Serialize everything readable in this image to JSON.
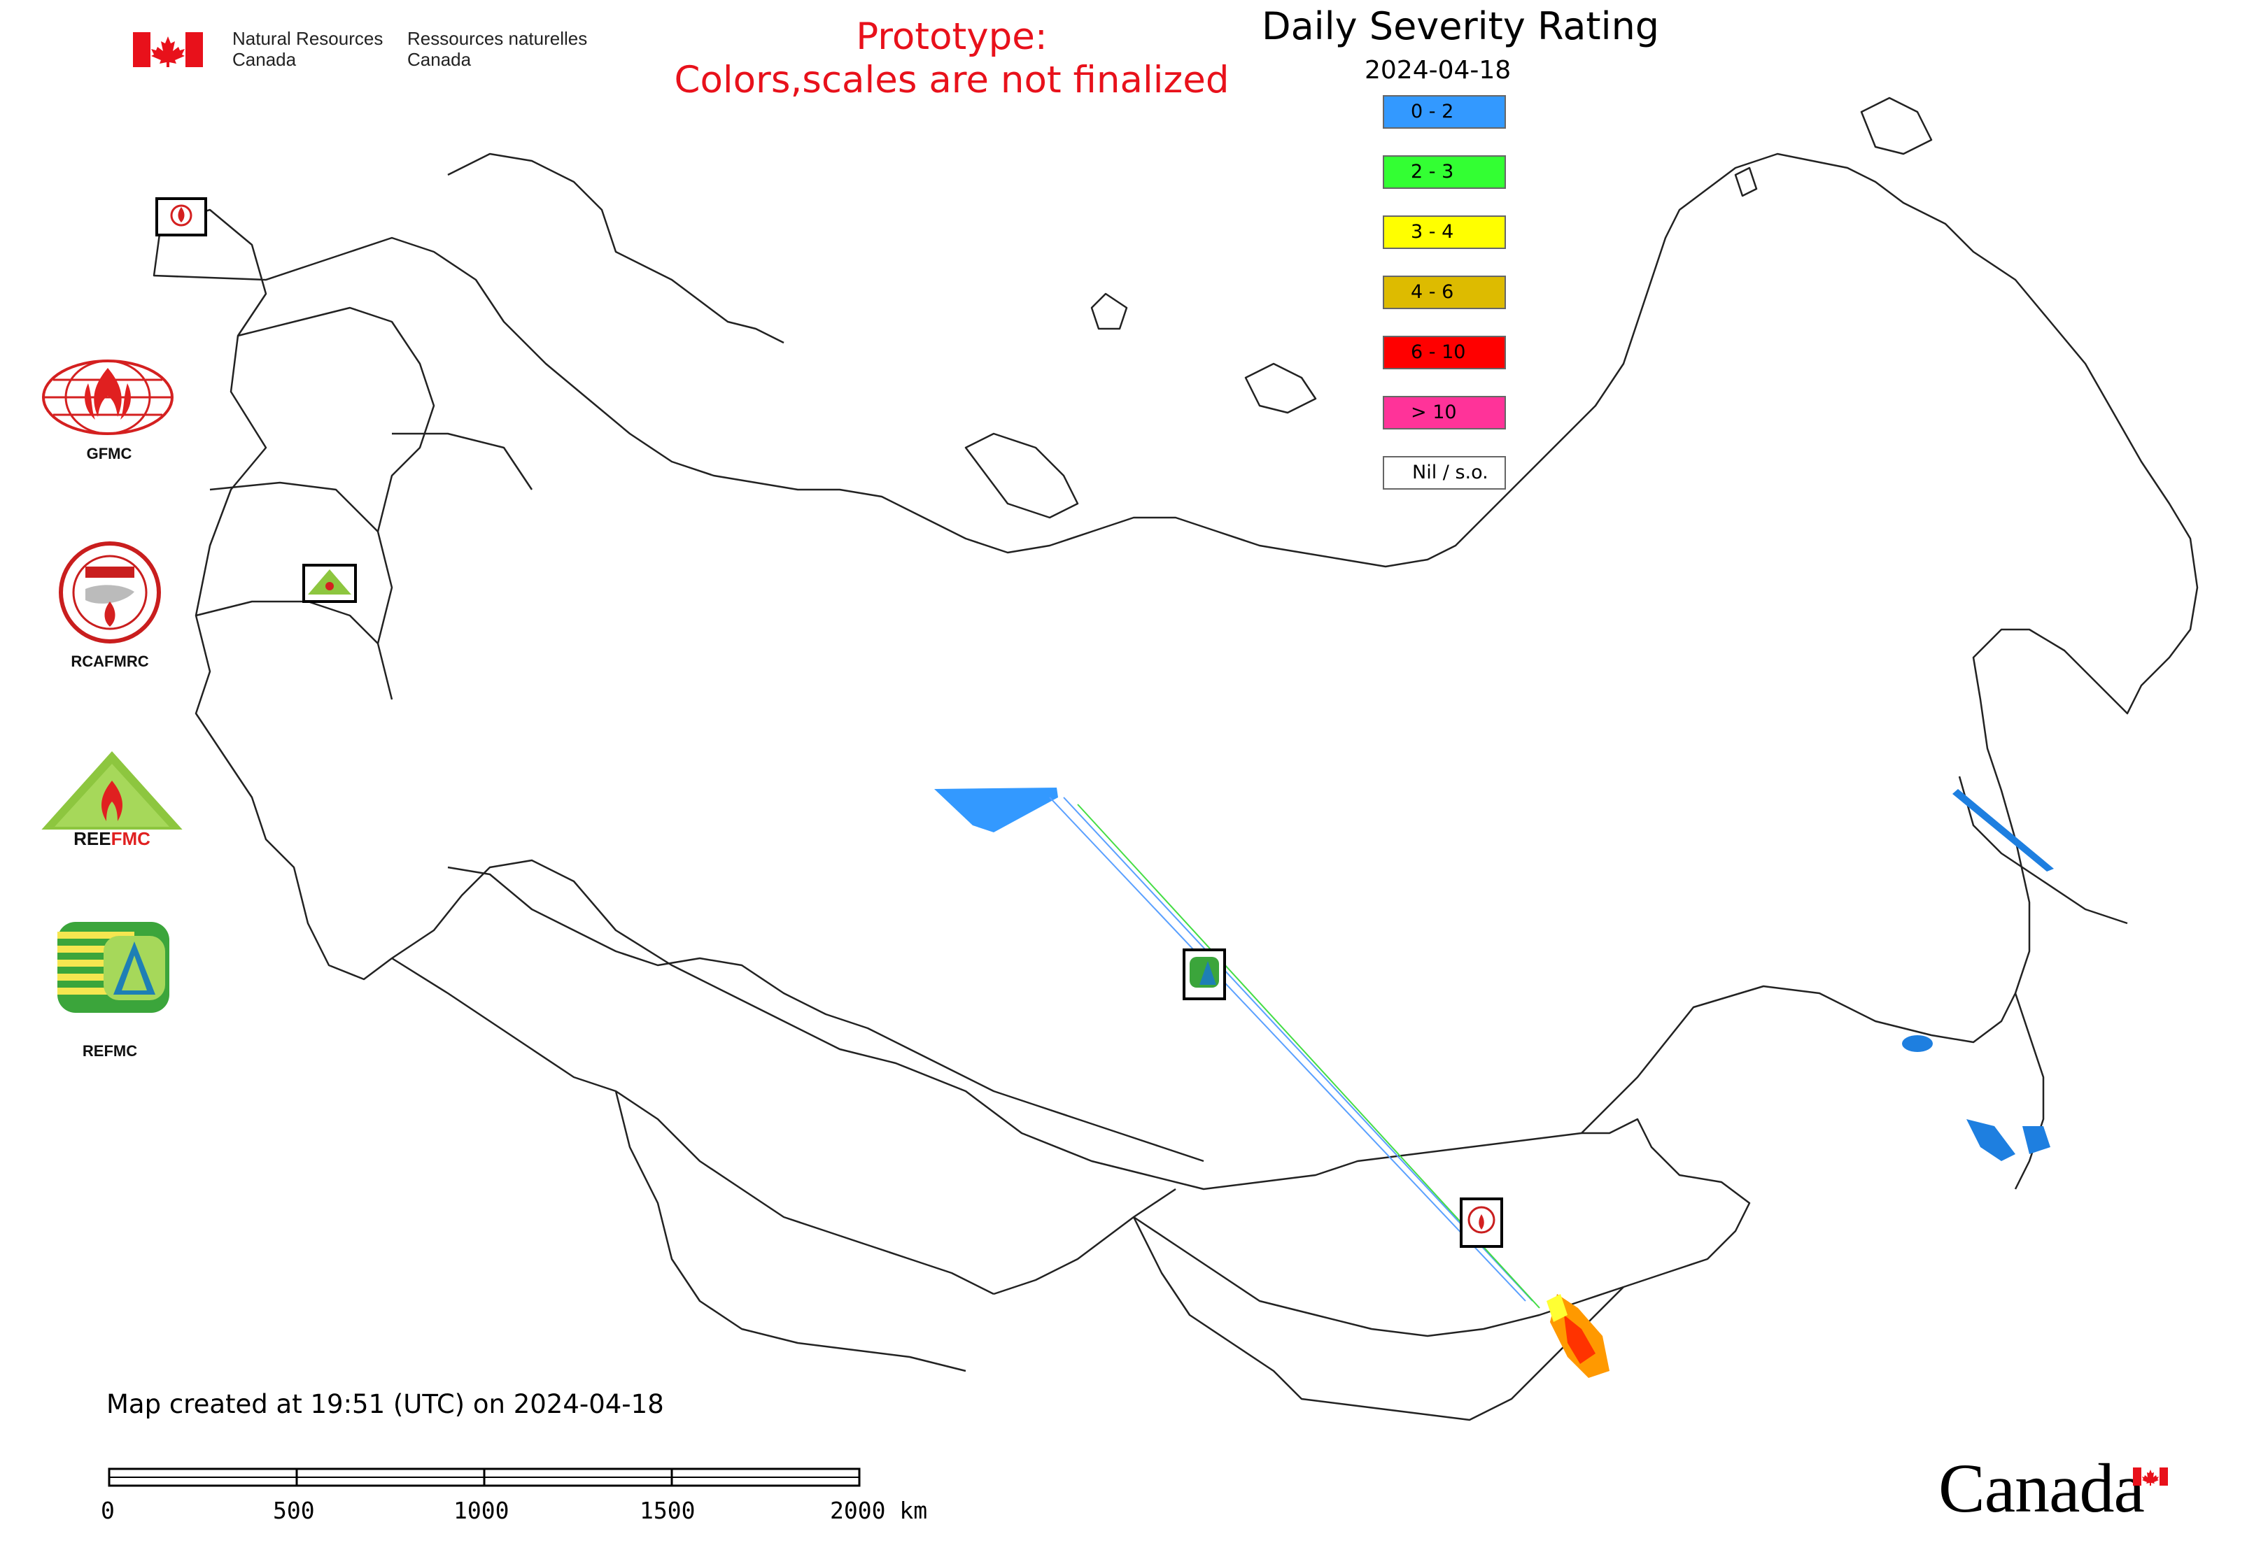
{
  "header": {
    "agency_en_line1": "Natural Resources",
    "agency_en_line2": "Canada",
    "agency_fr_line1": "Ressources naturelles",
    "agency_fr_line2": "Canada",
    "prototype_line1": "Prototype:",
    "prototype_line2": "Colors,scales are not finalized"
  },
  "map": {
    "title": "Daily Severity Rating",
    "date": "2024-04-18"
  },
  "legend": [
    {
      "label": "0 - 2",
      "color": "#3399ff"
    },
    {
      "label": "2 - 3",
      "color": "#33ff33"
    },
    {
      "label": "3 - 4",
      "color": "#ffff00"
    },
    {
      "label": "4 - 6",
      "color": "#ddbb00"
    },
    {
      "label": "6 - 10",
      "color": "#ff0000"
    },
    {
      "label": "> 10",
      "color": "#ff3399"
    },
    {
      "label": "Nil / s.o.",
      "color": "#ffffff"
    }
  ],
  "organizations": [
    {
      "label": "GFMC"
    },
    {
      "label": "RCAFMRC"
    },
    {
      "label": "REEFMC"
    },
    {
      "label": "REFMC"
    }
  ],
  "footer": {
    "created": "Map created at 19:51 (UTC) on 2024-04-18",
    "scale_labels": [
      "0",
      "500",
      "1000",
      "1500",
      "2000 km"
    ],
    "wordmark": "Canada"
  },
  "colors": {
    "prototype_text": "#e8111b",
    "flag_red": "#e8111b",
    "boundary": "#222222"
  }
}
